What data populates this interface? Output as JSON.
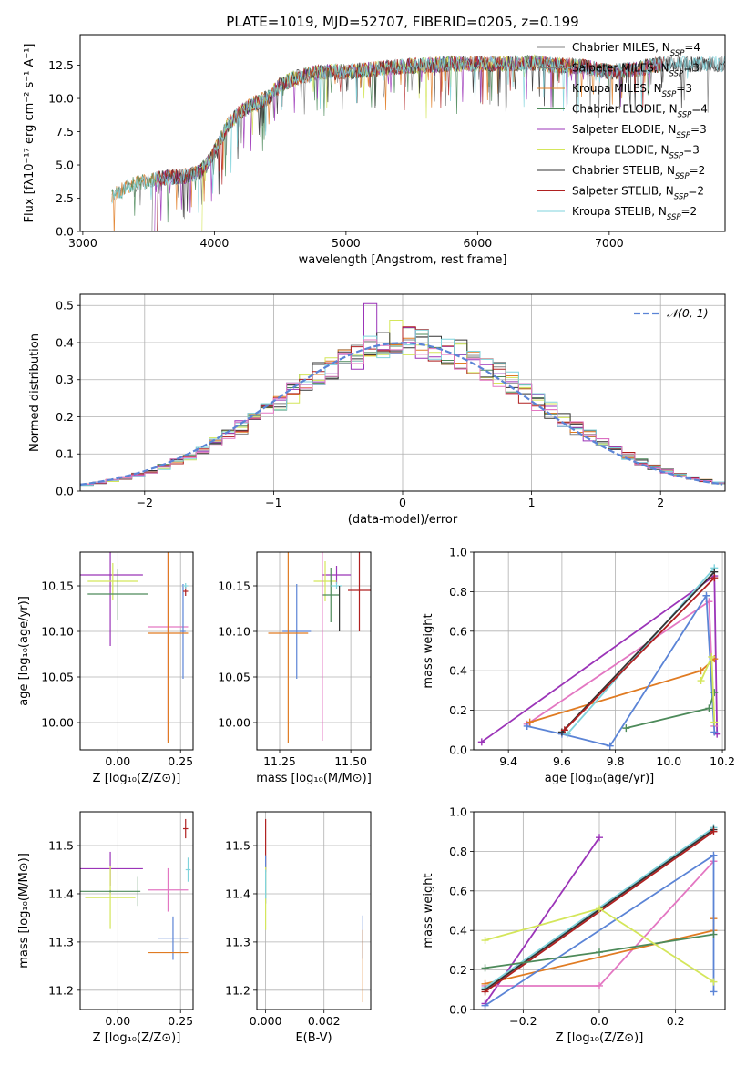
{
  "figure": {
    "title": "PLATE=1019, MJD=52707, FIBERID=0205, z=0.199"
  },
  "chart_data": [
    {
      "id": "spectrum",
      "type": "line",
      "xlabel": "wavelength [Angstrom, rest frame]",
      "ylabel": "Flux [fλ10⁻¹⁷ erg cm⁻² s⁻¹ A⁻¹]",
      "xlim": [
        2980,
        7880
      ],
      "ylim": [
        0,
        14.8
      ],
      "xticks": [
        3000,
        4000,
        5000,
        6000,
        7000
      ],
      "yticks": [
        0.0,
        2.5,
        5.0,
        7.5,
        10.0,
        12.5
      ],
      "grid": false,
      "legend_position": "top-right",
      "legend": [
        {
          "label": "Chabrier MILES, N",
          "sub": "SSP",
          "suffix": "=4",
          "color": "#808080"
        },
        {
          "label": "Salpeter MILES, N",
          "sub": "SSP",
          "suffix": "=3",
          "color": "#808080"
        },
        {
          "label": "Kroupa MILES, N",
          "sub": "SSP",
          "suffix": "=3",
          "color": "#e07b22"
        },
        {
          "label": "Chabrier ELODIE, N",
          "sub": "SSP",
          "suffix": "=4",
          "color": "#4d8a5a"
        },
        {
          "label": "Salpeter ELODIE, N",
          "sub": "SSP",
          "suffix": "=3",
          "color": "#9b34b8"
        },
        {
          "label": "Kroupa ELODIE, N",
          "sub": "SSP",
          "suffix": "=3",
          "color": "#d4e65a"
        },
        {
          "label": "Chabrier STELIB, N",
          "sub": "SSP",
          "suffix": "=2",
          "color": "#333333"
        },
        {
          "label": "Salpeter STELIB, N",
          "sub": "SSP",
          "suffix": "=2",
          "color": "#b02020"
        },
        {
          "label": "Kroupa STELIB, N",
          "sub": "SSP",
          "suffix": "=2",
          "color": "#7fd3dc"
        }
      ],
      "envelope": {
        "x": [
          3220,
          3300,
          3400,
          3500,
          3600,
          3700,
          3800,
          3900,
          4000,
          4100,
          4200,
          4300,
          4400,
          4500,
          4600,
          4800,
          5000,
          5200,
          5400,
          5600,
          5800,
          6000,
          6200,
          6400,
          6600,
          6800,
          7000,
          7200,
          7400
        ],
        "y": [
          2.6,
          3.1,
          3.6,
          3.8,
          4.0,
          4.1,
          4.2,
          4.5,
          6.0,
          8.0,
          9.0,
          9.6,
          10.0,
          11.0,
          11.5,
          12.0,
          12.0,
          12.2,
          12.4,
          12.5,
          12.6,
          12.6,
          12.6,
          12.7,
          12.5,
          12.4,
          12.0,
          12.2,
          12.6
        ]
      }
    },
    {
      "id": "residuals",
      "type": "histogram",
      "xlabel": "(data-model)/error",
      "ylabel": "Normed distribution",
      "xlim": [
        -2.5,
        2.5
      ],
      "ylim": [
        0,
        0.53
      ],
      "xticks": [
        -2,
        -1,
        0,
        1,
        2
      ],
      "yticks": [
        0.0,
        0.1,
        0.2,
        0.3,
        0.4,
        0.5
      ],
      "grid": true,
      "legend_position": "top-right",
      "curve_label": "𝒩(0, 1)",
      "curve_color": "#5b84d6"
    },
    {
      "id": "age-vs-Z",
      "type": "scatter",
      "xlabel": "Z [log₁₀(Z/Z⊙)]",
      "ylabel": "age  [log₁₀(age/yr)]",
      "xlim": [
        -0.15,
        0.3
      ],
      "ylim": [
        9.97,
        10.187
      ],
      "xticks": [
        "0.00",
        "0.25"
      ],
      "yticks": [
        "10.00",
        "10.05",
        "10.10",
        "10.15"
      ],
      "grid": true,
      "points": [
        {
          "x": -0.03,
          "y": 10.162,
          "xerr": 0.13,
          "yerr": 0.078,
          "color": "#9b34b8"
        },
        {
          "x": -0.02,
          "y": 10.155,
          "xerr": 0.1,
          "yerr": 0.02,
          "color": "#d4e65a"
        },
        {
          "x": 0.0,
          "y": 10.141,
          "xerr": 0.12,
          "yerr": 0.028,
          "color": "#4d8a5a"
        },
        {
          "x": 0.2,
          "y": 10.105,
          "xerr": 0.08,
          "yerr": 0.125,
          "color": "#e377c2"
        },
        {
          "x": 0.26,
          "y": 10.1,
          "xerr": 0.01,
          "yerr": 0.052,
          "color": "#5b84d6"
        },
        {
          "x": 0.2,
          "y": 10.098,
          "xerr": 0.08,
          "yerr": 0.12,
          "color": "#e07b22"
        },
        {
          "x": 0.27,
          "y": 10.144,
          "xerr": 0.01,
          "yerr": 0.005,
          "color": "#b02020"
        },
        {
          "x": 0.27,
          "y": 10.15,
          "xerr": 0.01,
          "yerr": 0.003,
          "color": "#7fd3dc"
        }
      ]
    },
    {
      "id": "age-vs-mass",
      "type": "scatter",
      "xlabel": "mass [log₁₀(M/M⊙)]",
      "xlim": [
        11.17,
        11.57
      ],
      "ylim": [
        9.97,
        10.187
      ],
      "xticks": [
        "11.25",
        "11.50"
      ],
      "yticks": [
        "10.00",
        "10.05",
        "10.10",
        "10.15"
      ],
      "grid": true,
      "points": [
        {
          "x": 11.45,
          "y": 10.162,
          "xerr": 0.05,
          "yerr": 0.01,
          "color": "#9b34b8"
        },
        {
          "x": 11.41,
          "y": 10.155,
          "xerr": 0.04,
          "yerr": 0.022,
          "color": "#d4e65a"
        },
        {
          "x": 11.43,
          "y": 10.14,
          "xerr": 0.03,
          "yerr": 0.03,
          "color": "#4d8a5a"
        },
        {
          "x": 11.4,
          "y": 10.105,
          "xerr": 0.0,
          "yerr": 0.125,
          "color": "#e377c2"
        },
        {
          "x": 11.31,
          "y": 10.1,
          "xerr": 0.05,
          "yerr": 0.052,
          "color": "#5b84d6"
        },
        {
          "x": 11.28,
          "y": 10.098,
          "xerr": 0.07,
          "yerr": 0.12,
          "color": "#e07b22"
        },
        {
          "x": 11.53,
          "y": 10.145,
          "xerr": 0.04,
          "yerr": 0.045,
          "color": "#b02020"
        },
        {
          "x": 11.45,
          "y": 10.15,
          "xerr": 0.02,
          "yerr": 0.004,
          "color": "#7fd3dc"
        },
        {
          "x": 11.46,
          "y": 10.125,
          "xerr": 0.0,
          "yerr": 0.025,
          "color": "#333333"
        }
      ]
    },
    {
      "id": "weight-vs-age",
      "type": "line",
      "xlabel": "age  [log₁₀(age/yr)]",
      "ylabel": "mass weight",
      "xlim": [
        9.27,
        10.21
      ],
      "ylim": [
        0,
        1.0
      ],
      "xticks": [
        "9.4",
        "9.6",
        "9.8",
        "10.0",
        "10.2"
      ],
      "yticks": [
        "0.0",
        "0.2",
        "0.4",
        "0.6",
        "0.8",
        "1.0"
      ],
      "grid": true,
      "series": [
        {
          "color": "#9b34b8",
          "x": [
            9.3,
            10.17,
            10.18
          ],
          "y": [
            0.04,
            0.88,
            0.08
          ]
        },
        {
          "color": "#e377c2",
          "x": [
            9.47,
            10.15,
            10.17
          ],
          "y": [
            0.13,
            0.75,
            0.12
          ]
        },
        {
          "color": "#e07b22",
          "x": [
            9.48,
            10.12,
            10.17
          ],
          "y": [
            0.14,
            0.4,
            0.46
          ]
        },
        {
          "color": "#5b84d6",
          "x": [
            9.47,
            9.6,
            9.78,
            10.14,
            10.17
          ],
          "y": [
            0.12,
            0.08,
            0.02,
            0.78,
            0.09
          ]
        },
        {
          "color": "#7fd3dc",
          "x": [
            9.62,
            10.17
          ],
          "y": [
            0.08,
            0.92
          ]
        },
        {
          "color": "#333333",
          "x": [
            9.6,
            10.17
          ],
          "y": [
            0.09,
            0.9
          ]
        },
        {
          "color": "#b02020",
          "x": [
            9.61,
            10.17
          ],
          "y": [
            0.1,
            0.87
          ]
        },
        {
          "color": "#4d8a5a",
          "x": [
            9.84,
            10.15,
            10.17
          ],
          "y": [
            0.11,
            0.21,
            0.29
          ]
        },
        {
          "color": "#d4e65a",
          "x": [
            10.12,
            10.16,
            10.17
          ],
          "y": [
            0.35,
            0.47,
            0.14
          ]
        }
      ]
    },
    {
      "id": "mass-vs-Z",
      "type": "scatter",
      "xlabel": "Z [log₁₀(Z/Z⊙)]",
      "ylabel": "mass [log₁₀(M/M⊙)]",
      "xlim": [
        -0.15,
        0.3
      ],
      "ylim": [
        11.16,
        11.57
      ],
      "xticks": [
        "0.00",
        "0.25"
      ],
      "yticks": [
        "11.2",
        "11.3",
        "11.4",
        "11.5"
      ],
      "grid": true,
      "points": [
        {
          "x": -0.03,
          "y": 11.452,
          "xerr": 0.13,
          "yerr": 0.035,
          "color": "#9b34b8"
        },
        {
          "x": -0.03,
          "y": 11.392,
          "xerr": 0.1,
          "yerr": 0.065,
          "color": "#d4e65a"
        },
        {
          "x": -0.03,
          "y": 11.405,
          "xerr": 0.12,
          "yerr": 0.002,
          "color": "#4d8a5a"
        },
        {
          "x": 0.08,
          "y": 11.405,
          "xerr": 0.0,
          "yerr": 0.03,
          "color": "#4d8a5a"
        },
        {
          "x": 0.2,
          "y": 11.408,
          "xerr": 0.08,
          "yerr": 0.045,
          "color": "#e377c2"
        },
        {
          "x": 0.22,
          "y": 11.308,
          "xerr": 0.06,
          "yerr": 0.045,
          "color": "#5b84d6"
        },
        {
          "x": 0.2,
          "y": 11.278,
          "xerr": 0.08,
          "yerr": 0.0,
          "color": "#e07b22"
        },
        {
          "x": 0.27,
          "y": 11.535,
          "xerr": 0.01,
          "yerr": 0.02,
          "color": "#b02020"
        },
        {
          "x": 0.28,
          "y": 11.45,
          "xerr": 0.01,
          "yerr": 0.025,
          "color": "#7fd3dc"
        }
      ]
    },
    {
      "id": "mass-vs-EBV",
      "type": "scatter",
      "xlabel": "E(B-V)",
      "xlim": [
        -0.0003,
        0.0036
      ],
      "ylim": [
        11.16,
        11.57
      ],
      "xticks": [
        "0.000",
        "0.002"
      ],
      "yticks": [
        "11.2",
        "11.3",
        "11.4",
        "11.5"
      ],
      "grid": true,
      "points": [
        {
          "x": 0.0,
          "y": 11.5,
          "xerr": 0,
          "yerr": 0.055,
          "color": "#b02020"
        },
        {
          "x": 0.0,
          "y": 11.43,
          "xerr": 0,
          "yerr": 0.05,
          "color": "#5b84d6"
        },
        {
          "x": 0.0,
          "y": 11.39,
          "xerr": 0,
          "yerr": 0.065,
          "color": "#d4e65a"
        },
        {
          "x": 0.0,
          "y": 11.42,
          "xerr": 0,
          "yerr": 0.03,
          "color": "#7fd3dc"
        },
        {
          "x": 0.00333,
          "y": 11.31,
          "xerr": 0,
          "yerr": 0.045,
          "color": "#5b84d6"
        },
        {
          "x": 0.00333,
          "y": 11.25,
          "xerr": 0,
          "yerr": 0.075,
          "color": "#e07b22"
        }
      ]
    },
    {
      "id": "weight-vs-Z",
      "type": "line",
      "xlabel": "Z [log₁₀(Z/Z⊙)]",
      "ylabel": "mass weight",
      "xlim": [
        -0.33,
        0.33
      ],
      "ylim": [
        0,
        1.0
      ],
      "xticks": [
        "−0.2",
        "0.0",
        "0.2"
      ],
      "yticks": [
        "0.0",
        "0.2",
        "0.4",
        "0.6",
        "0.8",
        "1.0"
      ],
      "grid": true,
      "series": [
        {
          "color": "#9b34b8",
          "x": [
            -0.3,
            0.0
          ],
          "y": [
            0.03,
            0.87
          ]
        },
        {
          "color": "#e377c2",
          "x": [
            -0.3,
            0.0,
            0.3
          ],
          "y": [
            0.12,
            0.12,
            0.75
          ]
        },
        {
          "color": "#e07b22",
          "x": [
            -0.3,
            0.3,
            0.3
          ],
          "y": [
            0.13,
            0.4,
            0.46
          ]
        },
        {
          "color": "#5b84d6",
          "x": [
            -0.3,
            0.3,
            0.3
          ],
          "y": [
            0.02,
            0.78,
            0.09
          ]
        },
        {
          "color": "#7fd3dc",
          "x": [
            -0.3,
            0.3
          ],
          "y": [
            0.11,
            0.92
          ]
        },
        {
          "color": "#333333",
          "x": [
            -0.3,
            0.3
          ],
          "y": [
            0.1,
            0.91
          ]
        },
        {
          "color": "#b02020",
          "x": [
            -0.3,
            0.3
          ],
          "y": [
            0.09,
            0.9
          ]
        },
        {
          "color": "#4d8a5a",
          "x": [
            -0.3,
            0.0,
            0.3
          ],
          "y": [
            0.21,
            0.29,
            0.38
          ]
        },
        {
          "color": "#d4e65a",
          "x": [
            -0.3,
            0.0,
            0.3
          ],
          "y": [
            0.35,
            0.51,
            0.14
          ]
        }
      ]
    }
  ]
}
